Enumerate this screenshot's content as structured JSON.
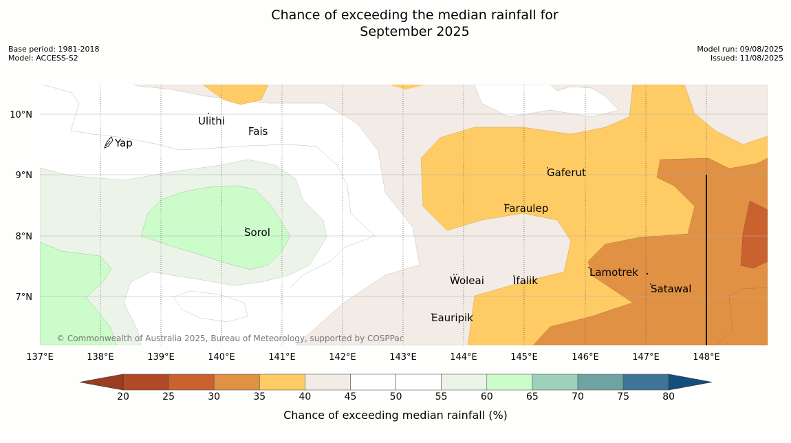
{
  "title_line1": "Chance of exceeding the median rainfall for",
  "title_line2": "September 2025",
  "base_period": "Base period: 1981-2018",
  "model": "Model: ACCESS-S2",
  "model_run": "Model run: 09/08/2025",
  "issued": "Issued: 11/08/2025",
  "copyright": "© Commonwealth of Australia 2025, Bureau of Meteorology, supported by COSPPac",
  "lon_ticks": [
    "137°E",
    "138°E",
    "139°E",
    "140°E",
    "141°E",
    "142°E",
    "143°E",
    "144°E",
    "145°E",
    "146°E",
    "147°E",
    "148°E"
  ],
  "lat_ticks": [
    "10°N",
    "9°N",
    "8°N",
    "7°N"
  ],
  "places": [
    {
      "name": "Ulithi"
    },
    {
      "name": "Fais"
    },
    {
      "name": "Yap"
    },
    {
      "name": "Gaferut"
    },
    {
      "name": "Faraulep"
    },
    {
      "name": "Sorol"
    },
    {
      "name": "Lamotrek"
    },
    {
      "name": "Woleai"
    },
    {
      "name": "Ifalik"
    },
    {
      "name": "Satawal"
    },
    {
      "name": "Eauripik"
    }
  ],
  "legend": {
    "label": "Chance of exceeding median rainfall (%)",
    "ticks": [
      "20",
      "25",
      "30",
      "35",
      "40",
      "45",
      "50",
      "55",
      "60",
      "65",
      "70",
      "75",
      "80"
    ],
    "colors": [
      "#b14a27",
      "#c9622f",
      "#e09143",
      "#fecb64",
      "#f2ebe6",
      "#ffffff",
      "#ffffff",
      "#ecf4ea",
      "#cdfccb",
      "#9ed1b9",
      "#6ea3a1",
      "#3e7496"
    ],
    "under_color": "#9a3d23",
    "over_color": "#154d7c"
  }
}
